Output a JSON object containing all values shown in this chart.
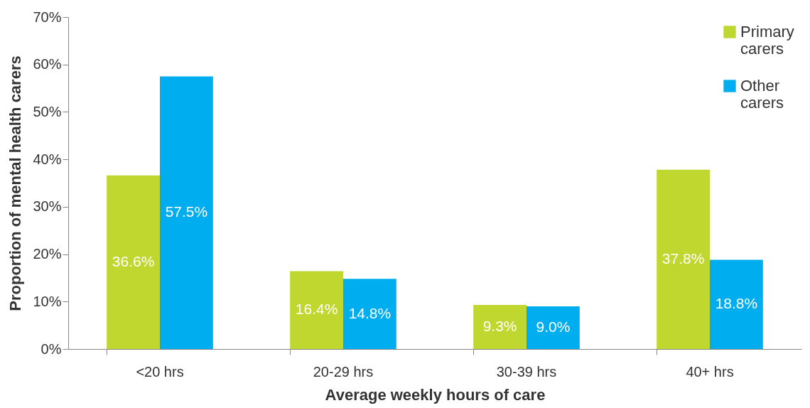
{
  "chart_data": {
    "type": "bar",
    "xlabel": "Average weekly hours of care",
    "ylabel": "Proportion of mental health carers",
    "categories": [
      "<20 hrs",
      "20-29 hrs",
      "30-39 hrs",
      "40+ hrs"
    ],
    "series": [
      {
        "name": "Primary carers",
        "color": "#c0d72f",
        "values": [
          36.6,
          16.4,
          9.3,
          37.8
        ],
        "value_labels": [
          "36.6%",
          "16.4%",
          "9.3%",
          "37.8%"
        ]
      },
      {
        "name": "Other carers",
        "color": "#00aeef",
        "values": [
          57.5,
          14.8,
          9.0,
          18.8
        ],
        "value_labels": [
          "57.5%",
          "14.8%",
          "9.0%",
          "18.8%"
        ]
      }
    ],
    "ylim": [
      0,
      70
    ],
    "yticks": [
      {
        "value": 0,
        "label": "0%"
      },
      {
        "value": 10,
        "label": "10%"
      },
      {
        "value": 20,
        "label": "20%"
      },
      {
        "value": 30,
        "label": "30%"
      },
      {
        "value": 40,
        "label": "40%"
      },
      {
        "value": 50,
        "label": "50%"
      },
      {
        "value": 60,
        "label": "60%"
      },
      {
        "value": 70,
        "label": "70%"
      }
    ],
    "grid": false,
    "legend": "top right"
  }
}
